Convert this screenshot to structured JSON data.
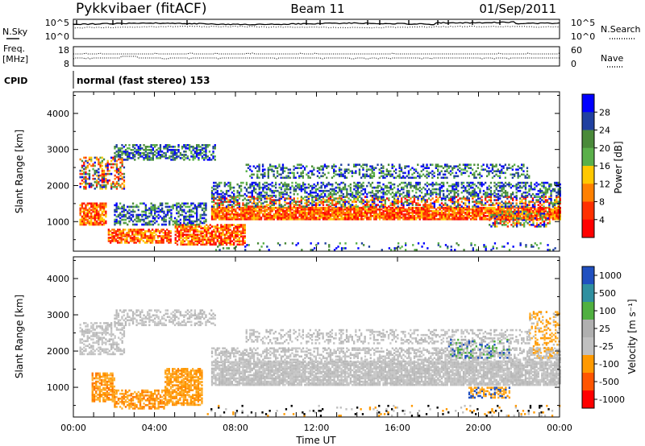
{
  "header": {
    "station": "Pykkvibaer (fitACF)",
    "beam": "Beam 11",
    "date": "01/Sep/2011"
  },
  "noise_panel": {
    "left_label": "N.Sky",
    "right_label": "N.Search",
    "left_ticks": [
      "10^5",
      "10^0"
    ],
    "right_ticks": [
      "10^5",
      "10^0"
    ]
  },
  "freq_panel": {
    "left_label_1": "Freq.",
    "left_label_2": "[MHz]",
    "right_label": "Nave",
    "left_ticks": [
      "18",
      "8"
    ],
    "right_ticks": [
      "60",
      "0"
    ]
  },
  "cpid": {
    "label": "CPID",
    "value": "normal (fast stereo) 153"
  },
  "colors": {
    "power_scale": [
      "#0000ff",
      "#2040a0",
      "#4a8a3a",
      "#5ab04a",
      "#ffc800",
      "#ff8000",
      "#ff3000",
      "#ff0000"
    ],
    "velocity_scale": [
      "#2050c0",
      "#3090a0",
      "#50b040",
      "#b0b0b0",
      "#c0c0c0",
      "#ff9900",
      "#ff5500",
      "#ff0000"
    ],
    "grey": "#c0c0c0"
  },
  "chart_data": [
    {
      "type": "heatmap",
      "ylabel": "Slant Range [km]",
      "ylim": [
        180,
        4600
      ],
      "yticks": [
        1000,
        2000,
        3000,
        4000
      ],
      "xlim": [
        "00:00",
        "24:00"
      ],
      "xticks": [
        "00:00",
        "04:00",
        "08:00",
        "12:00",
        "16:00",
        "20:00",
        "00:00"
      ],
      "colorbar": {
        "label": "Power [dB]",
        "range": [
          0,
          32
        ],
        "ticks": [
          "4",
          "8",
          "12",
          "16",
          "20",
          "24",
          "28"
        ]
      }
    },
    {
      "type": "heatmap",
      "ylabel": "Slant Range [km]",
      "ylim": [
        180,
        4600
      ],
      "yticks": [
        1000,
        2000,
        3000,
        4000
      ],
      "xlabel": "Time UT",
      "xlim": [
        "00:00",
        "24:00"
      ],
      "xticks": [
        "00:00",
        "04:00",
        "08:00",
        "12:00",
        "16:00",
        "20:00",
        "00:00"
      ],
      "colorbar": {
        "label": "Velocity [m s⁻¹]",
        "ticks": [
          "1000",
          "500",
          "100",
          "25",
          "-25",
          "-100",
          "-500",
          "-1000"
        ]
      }
    }
  ]
}
